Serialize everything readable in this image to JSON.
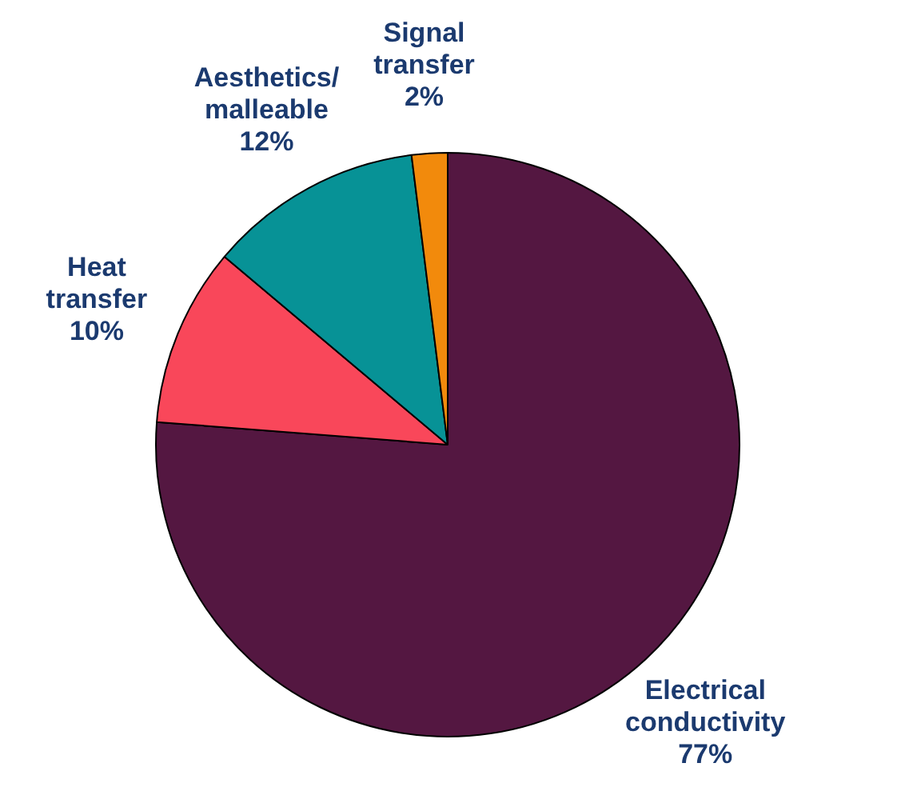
{
  "chart_data": {
    "type": "pie",
    "categories": [
      "Electrical conductivity",
      "Heat transfer",
      "Aesthetics/ malleable",
      "Signal transfer"
    ],
    "values": [
      77,
      10,
      12,
      2
    ],
    "colors": [
      "#541741",
      "#f9475a",
      "#079296",
      "#f28a0c"
    ],
    "value_labels": [
      "77%",
      "10%",
      "12%",
      "2%"
    ],
    "legend": false
  }
}
